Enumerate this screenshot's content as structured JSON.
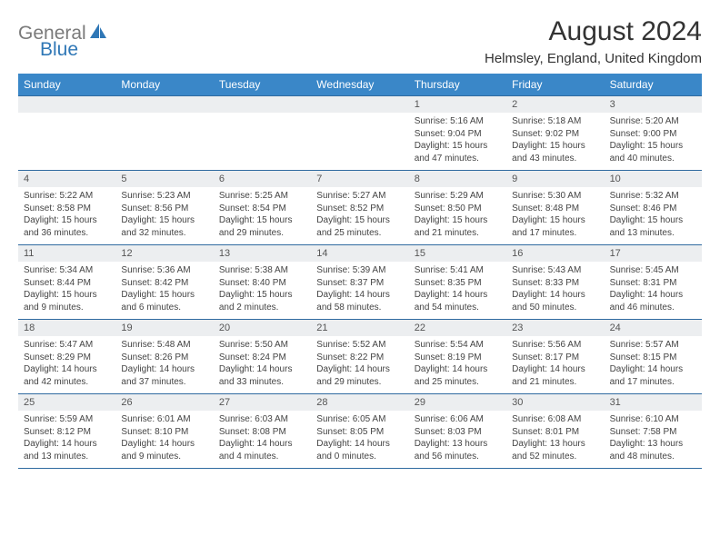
{
  "logo": {
    "general": "General",
    "blue": "Blue"
  },
  "title": "August 2024",
  "location": "Helmsley, England, United Kingdom",
  "day_names": [
    "Sunday",
    "Monday",
    "Tuesday",
    "Wednesday",
    "Thursday",
    "Friday",
    "Saturday"
  ],
  "colors": {
    "header_bg": "#3a87c8",
    "header_text": "#ffffff",
    "daynum_bg": "#eceef0",
    "border": "#2f6aa0",
    "logo_gray": "#7a7a7a",
    "logo_blue": "#2f77b6"
  },
  "weeks": [
    [
      {
        "n": "",
        "sr": "",
        "ss": "",
        "dl": ""
      },
      {
        "n": "",
        "sr": "",
        "ss": "",
        "dl": ""
      },
      {
        "n": "",
        "sr": "",
        "ss": "",
        "dl": ""
      },
      {
        "n": "",
        "sr": "",
        "ss": "",
        "dl": ""
      },
      {
        "n": "1",
        "sr": "Sunrise: 5:16 AM",
        "ss": "Sunset: 9:04 PM",
        "dl": "Daylight: 15 hours and 47 minutes."
      },
      {
        "n": "2",
        "sr": "Sunrise: 5:18 AM",
        "ss": "Sunset: 9:02 PM",
        "dl": "Daylight: 15 hours and 43 minutes."
      },
      {
        "n": "3",
        "sr": "Sunrise: 5:20 AM",
        "ss": "Sunset: 9:00 PM",
        "dl": "Daylight: 15 hours and 40 minutes."
      }
    ],
    [
      {
        "n": "4",
        "sr": "Sunrise: 5:22 AM",
        "ss": "Sunset: 8:58 PM",
        "dl": "Daylight: 15 hours and 36 minutes."
      },
      {
        "n": "5",
        "sr": "Sunrise: 5:23 AM",
        "ss": "Sunset: 8:56 PM",
        "dl": "Daylight: 15 hours and 32 minutes."
      },
      {
        "n": "6",
        "sr": "Sunrise: 5:25 AM",
        "ss": "Sunset: 8:54 PM",
        "dl": "Daylight: 15 hours and 29 minutes."
      },
      {
        "n": "7",
        "sr": "Sunrise: 5:27 AM",
        "ss": "Sunset: 8:52 PM",
        "dl": "Daylight: 15 hours and 25 minutes."
      },
      {
        "n": "8",
        "sr": "Sunrise: 5:29 AM",
        "ss": "Sunset: 8:50 PM",
        "dl": "Daylight: 15 hours and 21 minutes."
      },
      {
        "n": "9",
        "sr": "Sunrise: 5:30 AM",
        "ss": "Sunset: 8:48 PM",
        "dl": "Daylight: 15 hours and 17 minutes."
      },
      {
        "n": "10",
        "sr": "Sunrise: 5:32 AM",
        "ss": "Sunset: 8:46 PM",
        "dl": "Daylight: 15 hours and 13 minutes."
      }
    ],
    [
      {
        "n": "11",
        "sr": "Sunrise: 5:34 AM",
        "ss": "Sunset: 8:44 PM",
        "dl": "Daylight: 15 hours and 9 minutes."
      },
      {
        "n": "12",
        "sr": "Sunrise: 5:36 AM",
        "ss": "Sunset: 8:42 PM",
        "dl": "Daylight: 15 hours and 6 minutes."
      },
      {
        "n": "13",
        "sr": "Sunrise: 5:38 AM",
        "ss": "Sunset: 8:40 PM",
        "dl": "Daylight: 15 hours and 2 minutes."
      },
      {
        "n": "14",
        "sr": "Sunrise: 5:39 AM",
        "ss": "Sunset: 8:37 PM",
        "dl": "Daylight: 14 hours and 58 minutes."
      },
      {
        "n": "15",
        "sr": "Sunrise: 5:41 AM",
        "ss": "Sunset: 8:35 PM",
        "dl": "Daylight: 14 hours and 54 minutes."
      },
      {
        "n": "16",
        "sr": "Sunrise: 5:43 AM",
        "ss": "Sunset: 8:33 PM",
        "dl": "Daylight: 14 hours and 50 minutes."
      },
      {
        "n": "17",
        "sr": "Sunrise: 5:45 AM",
        "ss": "Sunset: 8:31 PM",
        "dl": "Daylight: 14 hours and 46 minutes."
      }
    ],
    [
      {
        "n": "18",
        "sr": "Sunrise: 5:47 AM",
        "ss": "Sunset: 8:29 PM",
        "dl": "Daylight: 14 hours and 42 minutes."
      },
      {
        "n": "19",
        "sr": "Sunrise: 5:48 AM",
        "ss": "Sunset: 8:26 PM",
        "dl": "Daylight: 14 hours and 37 minutes."
      },
      {
        "n": "20",
        "sr": "Sunrise: 5:50 AM",
        "ss": "Sunset: 8:24 PM",
        "dl": "Daylight: 14 hours and 33 minutes."
      },
      {
        "n": "21",
        "sr": "Sunrise: 5:52 AM",
        "ss": "Sunset: 8:22 PM",
        "dl": "Daylight: 14 hours and 29 minutes."
      },
      {
        "n": "22",
        "sr": "Sunrise: 5:54 AM",
        "ss": "Sunset: 8:19 PM",
        "dl": "Daylight: 14 hours and 25 minutes."
      },
      {
        "n": "23",
        "sr": "Sunrise: 5:56 AM",
        "ss": "Sunset: 8:17 PM",
        "dl": "Daylight: 14 hours and 21 minutes."
      },
      {
        "n": "24",
        "sr": "Sunrise: 5:57 AM",
        "ss": "Sunset: 8:15 PM",
        "dl": "Daylight: 14 hours and 17 minutes."
      }
    ],
    [
      {
        "n": "25",
        "sr": "Sunrise: 5:59 AM",
        "ss": "Sunset: 8:12 PM",
        "dl": "Daylight: 14 hours and 13 minutes."
      },
      {
        "n": "26",
        "sr": "Sunrise: 6:01 AM",
        "ss": "Sunset: 8:10 PM",
        "dl": "Daylight: 14 hours and 9 minutes."
      },
      {
        "n": "27",
        "sr": "Sunrise: 6:03 AM",
        "ss": "Sunset: 8:08 PM",
        "dl": "Daylight: 14 hours and 4 minutes."
      },
      {
        "n": "28",
        "sr": "Sunrise: 6:05 AM",
        "ss": "Sunset: 8:05 PM",
        "dl": "Daylight: 14 hours and 0 minutes."
      },
      {
        "n": "29",
        "sr": "Sunrise: 6:06 AM",
        "ss": "Sunset: 8:03 PM",
        "dl": "Daylight: 13 hours and 56 minutes."
      },
      {
        "n": "30",
        "sr": "Sunrise: 6:08 AM",
        "ss": "Sunset: 8:01 PM",
        "dl": "Daylight: 13 hours and 52 minutes."
      },
      {
        "n": "31",
        "sr": "Sunrise: 6:10 AM",
        "ss": "Sunset: 7:58 PM",
        "dl": "Daylight: 13 hours and 48 minutes."
      }
    ]
  ]
}
